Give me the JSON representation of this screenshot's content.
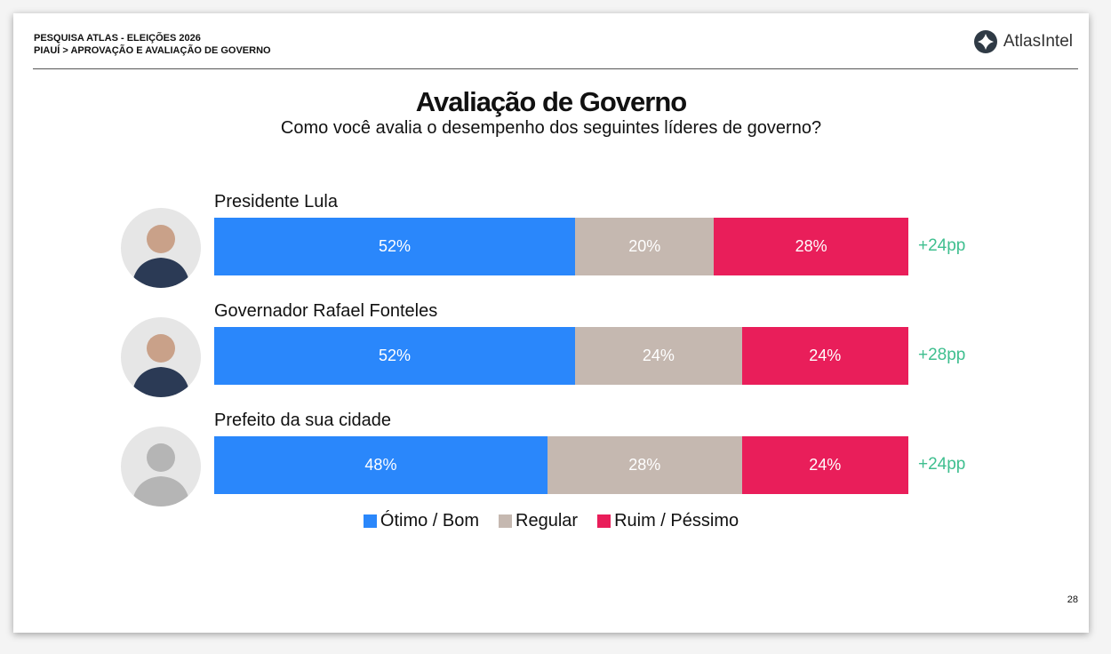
{
  "header": {
    "line1": "PESQUISA ATLAS - ELEIÇÕES 2026",
    "line2": "PIAUÍ > APROVAÇÃO E AVALIAÇÃO DE GOVERNO",
    "logo": "AtlasIntel"
  },
  "page_number": "28",
  "chart_data": {
    "type": "bar",
    "stacked": true,
    "orientation": "horizontal",
    "title": "Avaliação de Governo",
    "subtitle": "Como você avalia o desempenho dos seguintes líderes de governo?",
    "categories": [
      "Presidente Lula",
      "Governador Rafael Fonteles",
      "Prefeito da sua cidade"
    ],
    "series": [
      {
        "name": "Ótimo / Bom",
        "color": "#2a87fb",
        "values": [
          52,
          52,
          48
        ],
        "labels": [
          "52%",
          "52%",
          "48%"
        ]
      },
      {
        "name": "Regular",
        "color": "#c5b8b0",
        "values": [
          20,
          24,
          28
        ],
        "labels": [
          "20%",
          "24%",
          "28%"
        ]
      },
      {
        "name": "Ruim / Péssimo",
        "color": "#e91e5a",
        "values": [
          28,
          24,
          24
        ],
        "labels": [
          "28%",
          "24%",
          "24%"
        ]
      }
    ],
    "net": [
      "+24pp",
      "+28pp",
      "+24pp"
    ],
    "xlim": [
      0,
      100
    ],
    "legend_position": "bottom"
  }
}
